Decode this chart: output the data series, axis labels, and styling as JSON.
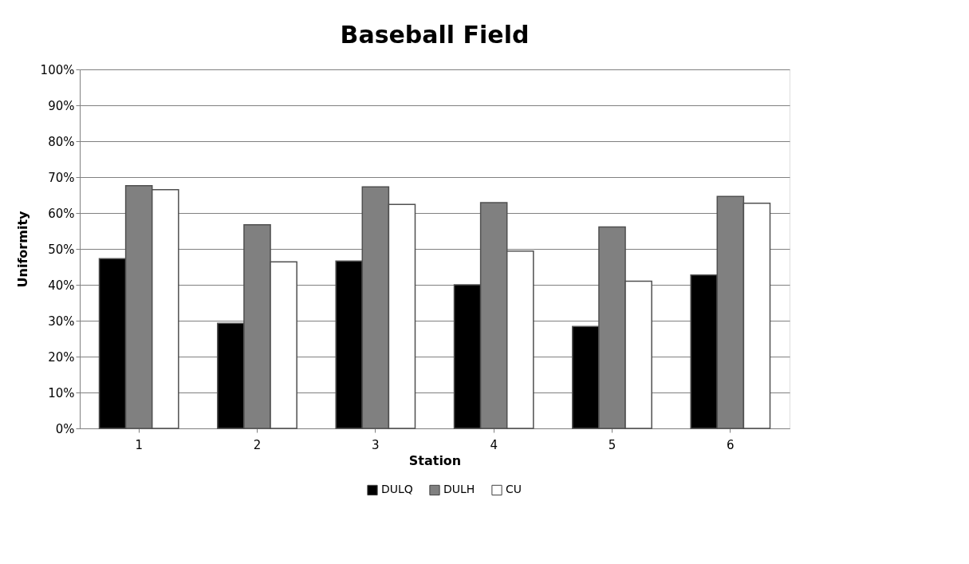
{
  "chart_data": {
    "type": "bar",
    "title": "Baseball Field",
    "xlabel": "Station",
    "ylabel": "Uniformity",
    "categories": [
      "1",
      "2",
      "3",
      "4",
      "5",
      "6"
    ],
    "series": [
      {
        "name": "DULQ",
        "color": "#000000",
        "values": [
          47.3,
          29.3,
          46.6,
          40.0,
          28.4,
          42.7
        ]
      },
      {
        "name": "DULH",
        "color": "#808080",
        "values": [
          67.6,
          56.7,
          67.3,
          62.9,
          56.1,
          64.6
        ]
      },
      {
        "name": "CU",
        "color": "#ffffff",
        "values": [
          66.5,
          46.4,
          62.4,
          49.4,
          41.0,
          62.7
        ]
      }
    ],
    "ylim": [
      0,
      100
    ],
    "yticks": [
      {
        "value": 0,
        "label": "0%"
      },
      {
        "value": 10,
        "label": "10%"
      },
      {
        "value": 20,
        "label": "20%"
      },
      {
        "value": 30,
        "label": "30%"
      },
      {
        "value": 40,
        "label": "40%"
      },
      {
        "value": 50,
        "label": "50%"
      },
      {
        "value": 60,
        "label": "60%"
      },
      {
        "value": 70,
        "label": "70%"
      },
      {
        "value": 80,
        "label": "80%"
      },
      {
        "value": 90,
        "label": "90%"
      },
      {
        "value": 100,
        "label": "100%"
      }
    ],
    "grid": "y",
    "legend": "bottom"
  }
}
